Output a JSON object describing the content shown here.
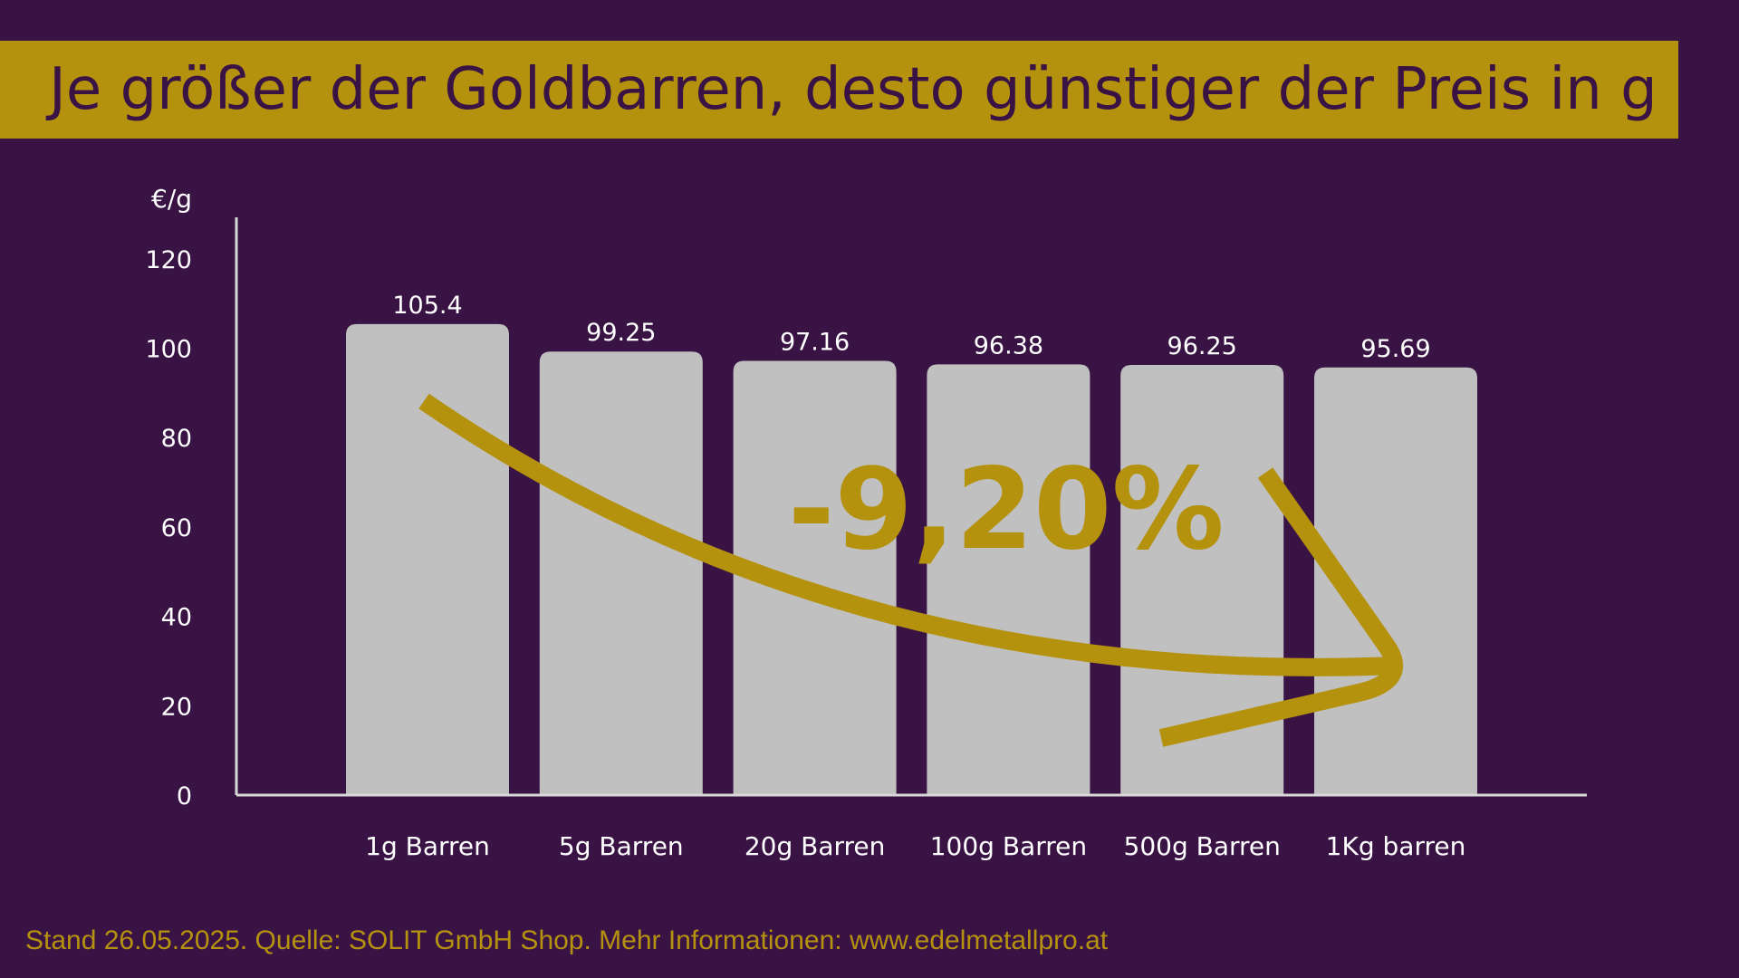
{
  "title": "Je größer der Goldbarren, desto günstiger der Preis in g",
  "footer": "Stand 26.05.2025.  Quelle: SOLIT GmbH Shop. Mehr Informationen: www.edelmetallpro.at",
  "colors": {
    "background": "#3a1345",
    "accent": "#b5920e",
    "bar": "#c0c0c0",
    "axis": "#d8d8d8",
    "text": "#ffffff"
  },
  "chart_data": {
    "type": "bar",
    "ylabel": "€/g",
    "ylim": [
      0,
      130
    ],
    "yticks": [
      "0",
      "20",
      "40",
      "60",
      "80",
      "100",
      "120"
    ],
    "categories": [
      "1g Barren",
      "5g Barren",
      "20g Barren",
      "100g Barren",
      "500g Barren",
      "1Kg barren"
    ],
    "values": [
      105.4,
      99.25,
      97.16,
      96.38,
      96.25,
      95.69
    ],
    "value_labels": [
      "105.4",
      "99.25",
      "97.16",
      "96.38",
      "96.25",
      "95.69"
    ],
    "annotation": "-9,20%",
    "annotation_arrow": "curved-down-right",
    "grid": false
  }
}
